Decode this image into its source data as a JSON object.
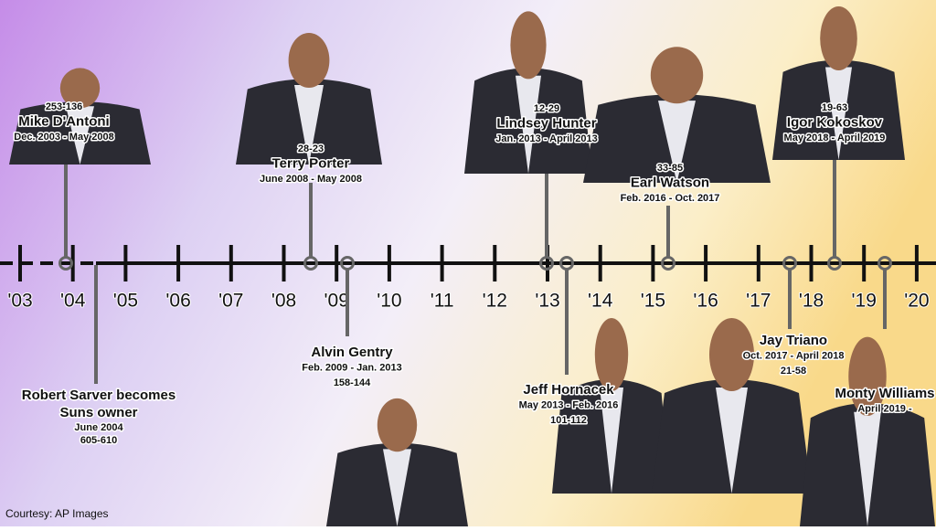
{
  "timeline": {
    "years": [
      "'03",
      "'04",
      "'05",
      "'06",
      "'07",
      "'08",
      "'09",
      "'10",
      "'11",
      "'12",
      "'13",
      "'14",
      "'15",
      "'16",
      "'17",
      "'18",
      "'19",
      "'20"
    ],
    "owner_event": {
      "title_lines": [
        "Robert Sarver becomes",
        "Suns owner"
      ],
      "date": "June 2004",
      "record": "605-610"
    },
    "coaches": [
      {
        "record": "253-136",
        "name": "Mike D'Antoni",
        "dates": "Dec. 2003 - May 2008"
      },
      {
        "record": "28-23",
        "name": "Terry Porter",
        "dates": "June 2008 - May 2008"
      },
      {
        "name": "Alvin Gentry",
        "dates": "Feb. 2009 - Jan. 2013",
        "record": "158-144"
      },
      {
        "record": "12-29",
        "name": "Lindsey Hunter",
        "dates": "Jan. 2013 - April 2013"
      },
      {
        "name": "Jeff Hornacek",
        "dates": "May 2013 - Feb. 2016",
        "record": "101-112"
      },
      {
        "record": "33-85",
        "name": "Earl Watson",
        "dates": "Feb. 2016 - Oct. 2017"
      },
      {
        "name": "Jay Triano",
        "dates": "Oct. 2017 - April 2018",
        "record": "21-58"
      },
      {
        "record": "19-63",
        "name": "Igor Kokoskov",
        "dates": "May 2018 - April 2019"
      },
      {
        "name": "Monty Williams",
        "dates": "April 2019 -"
      }
    ],
    "credit": "Courtesy: AP Images"
  }
}
